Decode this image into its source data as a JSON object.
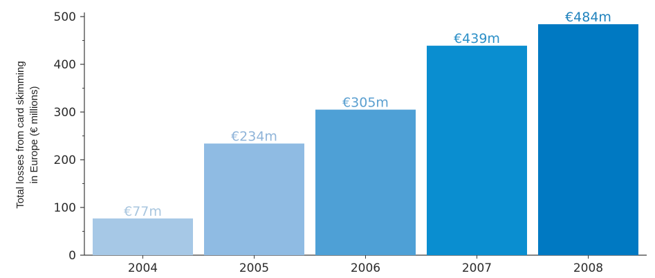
{
  "chart_data": {
    "type": "bar",
    "categories": [
      "2004",
      "2005",
      "2006",
      "2007",
      "2008"
    ],
    "values": [
      77,
      234,
      305,
      439,
      484
    ],
    "data_labels": [
      "€77m",
      "€234m",
      "€305m",
      "€439m",
      "€484m"
    ],
    "title": "",
    "xlabel": "",
    "ylabel_lines": [
      "Total losses from card skimming",
      "in Europe (€ millions)"
    ],
    "ylim": [
      0,
      500
    ],
    "yticks": [
      "0",
      "100",
      "200",
      "300",
      "400",
      "500"
    ],
    "grid": false,
    "legend": "none",
    "bar_colors": [
      "#a6c8e6",
      "#8fbbe3",
      "#4ea0d6",
      "#0a8ed0",
      "#0079c2"
    ],
    "label_colors": [
      "#a9c6df",
      "#8fb4d9",
      "#5a9fd0",
      "#2b8fc7",
      "#1f82bd"
    ]
  }
}
